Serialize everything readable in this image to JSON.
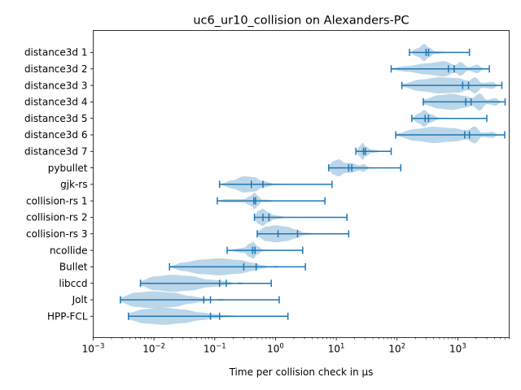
{
  "chart_data": {
    "type": "violin",
    "title": "uc6_ur10_collision on Alexanders-PC",
    "xlabel": "Time per collision check in µs",
    "ylabel": "",
    "xscale": "log",
    "xlim": [
      0.001,
      7000
    ],
    "xticks": [
      0.001,
      0.01,
      0.1,
      1,
      10,
      100,
      1000
    ],
    "xtick_labels": [
      {
        "base": "10",
        "exp": "−3"
      },
      {
        "base": "10",
        "exp": "−2"
      },
      {
        "base": "10",
        "exp": "−1"
      },
      {
        "base": "10",
        "exp": "0"
      },
      {
        "base": "10",
        "exp": "1"
      },
      {
        "base": "10",
        "exp": "2"
      },
      {
        "base": "10",
        "exp": "3"
      }
    ],
    "colors": {
      "line": "#1f77b4",
      "body": "#1f77b4"
    },
    "series": [
      {
        "name": "distance3d 1",
        "min": 160,
        "max": 1550,
        "mean": 330,
        "median": 300,
        "shape": [
          [
            160,
            0.05
          ],
          [
            220,
            0.5
          ],
          [
            280,
            1.0
          ],
          [
            330,
            0.6
          ],
          [
            420,
            0.15
          ],
          [
            800,
            0.04
          ],
          [
            1550,
            0.01
          ]
        ]
      },
      {
        "name": "distance3d 2",
        "min": 80,
        "max": 3300,
        "mean": 870,
        "median": 700,
        "shape": [
          [
            80,
            0.1
          ],
          [
            150,
            0.35
          ],
          [
            300,
            0.65
          ],
          [
            600,
            0.9
          ],
          [
            900,
            0.45
          ],
          [
            1100,
            0.8
          ],
          [
            1500,
            0.2
          ],
          [
            2100,
            0.5
          ],
          [
            2600,
            0.1
          ],
          [
            3300,
            0.02
          ]
        ]
      },
      {
        "name": "distance3d 3",
        "min": 120,
        "max": 5300,
        "mean": 1500,
        "median": 1200,
        "shape": [
          [
            120,
            0.2
          ],
          [
            250,
            0.7
          ],
          [
            500,
            0.95
          ],
          [
            1000,
            0.85
          ],
          [
            1500,
            0.55
          ],
          [
            1900,
            0.95
          ],
          [
            2500,
            0.3
          ],
          [
            3800,
            0.4
          ],
          [
            4500,
            0.1
          ],
          [
            5300,
            0.02
          ]
        ]
      },
      {
        "name": "distance3d 4",
        "min": 270,
        "max": 6000,
        "mean": 1650,
        "median": 1350,
        "shape": [
          [
            270,
            0.3
          ],
          [
            500,
            0.8
          ],
          [
            800,
            0.95
          ],
          [
            1300,
            0.7
          ],
          [
            1700,
            0.45
          ],
          [
            2300,
            1.0
          ],
          [
            3000,
            0.25
          ],
          [
            4200,
            0.45
          ],
          [
            5000,
            0.1
          ],
          [
            6000,
            0.02
          ]
        ]
      },
      {
        "name": "distance3d 5",
        "min": 175,
        "max": 3000,
        "mean": 330,
        "median": 290,
        "shape": [
          [
            175,
            0.1
          ],
          [
            230,
            0.6
          ],
          [
            280,
            1.0
          ],
          [
            350,
            0.5
          ],
          [
            500,
            0.08
          ],
          [
            1000,
            0.03
          ],
          [
            3000,
            0.01
          ]
        ]
      },
      {
        "name": "distance3d 6",
        "min": 95,
        "max": 5900,
        "mean": 1550,
        "median": 1300,
        "shape": [
          [
            95,
            0.15
          ],
          [
            200,
            0.7
          ],
          [
            400,
            0.95
          ],
          [
            800,
            0.8
          ],
          [
            1400,
            0.55
          ],
          [
            1900,
            1.0
          ],
          [
            2500,
            0.25
          ],
          [
            3800,
            0.35
          ],
          [
            4500,
            0.08
          ],
          [
            5900,
            0.02
          ]
        ]
      },
      {
        "name": "distance3d 7",
        "min": 21,
        "max": 80,
        "mean": 30,
        "median": 28,
        "shape": [
          [
            21,
            0.05
          ],
          [
            24,
            0.55
          ],
          [
            27,
            1.0
          ],
          [
            31,
            0.55
          ],
          [
            38,
            0.2
          ],
          [
            55,
            0.05
          ],
          [
            80,
            0.01
          ]
        ]
      },
      {
        "name": "pybullet",
        "min": 7.5,
        "max": 115,
        "mean": 18,
        "median": 16,
        "shape": [
          [
            7.5,
            0.25
          ],
          [
            9,
            0.8
          ],
          [
            11,
            1.0
          ],
          [
            14,
            0.6
          ],
          [
            18,
            0.55
          ],
          [
            24,
            0.3
          ],
          [
            28,
            0.45
          ],
          [
            35,
            0.08
          ],
          [
            60,
            0.03
          ],
          [
            115,
            0.01
          ]
        ]
      },
      {
        "name": "gjk-rs",
        "min": 0.12,
        "max": 8.5,
        "mean": 0.62,
        "median": 0.4,
        "shape": [
          [
            0.12,
            0.05
          ],
          [
            0.2,
            0.5
          ],
          [
            0.3,
            0.95
          ],
          [
            0.45,
            0.85
          ],
          [
            0.6,
            0.4
          ],
          [
            1,
            0.08
          ],
          [
            2.5,
            0.03
          ],
          [
            8.5,
            0.01
          ]
        ]
      },
      {
        "name": "collision-rs 1",
        "min": 0.11,
        "max": 6.5,
        "mean": 0.47,
        "median": 0.44,
        "shape": [
          [
            0.11,
            0.05
          ],
          [
            0.15,
            0.2
          ],
          [
            0.3,
            0.2
          ],
          [
            0.4,
            0.6
          ],
          [
            0.45,
            1.0
          ],
          [
            0.5,
            0.65
          ],
          [
            0.6,
            0.15
          ],
          [
            1.2,
            0.04
          ],
          [
            6.5,
            0.01
          ]
        ]
      },
      {
        "name": "collision-rs 2",
        "min": 0.45,
        "max": 15,
        "mean": 0.78,
        "median": 0.62,
        "shape": [
          [
            0.45,
            0.2
          ],
          [
            0.52,
            0.8
          ],
          [
            0.62,
            1.0
          ],
          [
            0.75,
            0.6
          ],
          [
            0.95,
            0.25
          ],
          [
            1.5,
            0.05
          ],
          [
            15,
            0.01
          ]
        ]
      },
      {
        "name": "collision-rs 3",
        "min": 0.5,
        "max": 16,
        "mean": 2.3,
        "median": 1.1,
        "shape": [
          [
            0.5,
            0.3
          ],
          [
            0.7,
            0.85
          ],
          [
            1,
            1.0
          ],
          [
            1.5,
            0.85
          ],
          [
            2.2,
            0.5
          ],
          [
            3,
            0.15
          ],
          [
            5,
            0.04
          ],
          [
            16,
            0.01
          ]
        ]
      },
      {
        "name": "ncollide",
        "min": 0.16,
        "max": 2.8,
        "mean": 0.46,
        "median": 0.42,
        "shape": [
          [
            0.16,
            0.02
          ],
          [
            0.3,
            0.3
          ],
          [
            0.38,
            0.8
          ],
          [
            0.43,
            1.0
          ],
          [
            0.5,
            0.5
          ],
          [
            0.62,
            0.1
          ],
          [
            1,
            0.03
          ],
          [
            2.8,
            0.01
          ]
        ]
      },
      {
        "name": "Bullet",
        "min": 0.018,
        "max": 3.1,
        "mean": 0.48,
        "median": 0.3,
        "shape": [
          [
            0.018,
            0.1
          ],
          [
            0.03,
            0.5
          ],
          [
            0.06,
            0.85
          ],
          [
            0.12,
            1.0
          ],
          [
            0.25,
            0.8
          ],
          [
            0.45,
            0.45
          ],
          [
            0.6,
            0.2
          ],
          [
            0.8,
            0.05
          ],
          [
            1.0,
            0.12
          ],
          [
            1.2,
            0.04
          ],
          [
            3.1,
            0.01
          ]
        ]
      },
      {
        "name": "libccd",
        "min": 0.006,
        "max": 0.85,
        "mean": 0.155,
        "median": 0.12,
        "shape": [
          [
            0.006,
            0.3
          ],
          [
            0.01,
            0.8
          ],
          [
            0.02,
            1.0
          ],
          [
            0.04,
            0.85
          ],
          [
            0.08,
            0.45
          ],
          [
            0.12,
            0.35
          ],
          [
            0.16,
            0.2
          ],
          [
            0.22,
            0.05
          ],
          [
            0.26,
            0.15
          ],
          [
            0.32,
            0.03
          ],
          [
            0.5,
            0.05
          ],
          [
            0.85,
            0.01
          ]
        ]
      },
      {
        "name": "Jolt",
        "min": 0.0028,
        "max": 1.15,
        "mean": 0.085,
        "median": 0.066,
        "shape": [
          [
            0.0028,
            0.3
          ],
          [
            0.005,
            0.85
          ],
          [
            0.01,
            1.0
          ],
          [
            0.02,
            0.85
          ],
          [
            0.04,
            0.45
          ],
          [
            0.06,
            0.25
          ],
          [
            0.08,
            0.12
          ],
          [
            0.1,
            0.04
          ],
          [
            0.13,
            0.12
          ],
          [
            0.16,
            0.03
          ],
          [
            0.3,
            0.01
          ],
          [
            1.15,
            0.005
          ]
        ]
      },
      {
        "name": "HPP-FCL",
        "min": 0.0038,
        "max": 1.6,
        "mean": 0.12,
        "median": 0.085,
        "shape": [
          [
            0.0038,
            0.4
          ],
          [
            0.007,
            0.85
          ],
          [
            0.015,
            1.0
          ],
          [
            0.03,
            0.8
          ],
          [
            0.06,
            0.45
          ],
          [
            0.1,
            0.25
          ],
          [
            0.15,
            0.12
          ],
          [
            0.3,
            0.04
          ],
          [
            0.7,
            0.015
          ],
          [
            1.6,
            0.005
          ]
        ]
      }
    ]
  }
}
